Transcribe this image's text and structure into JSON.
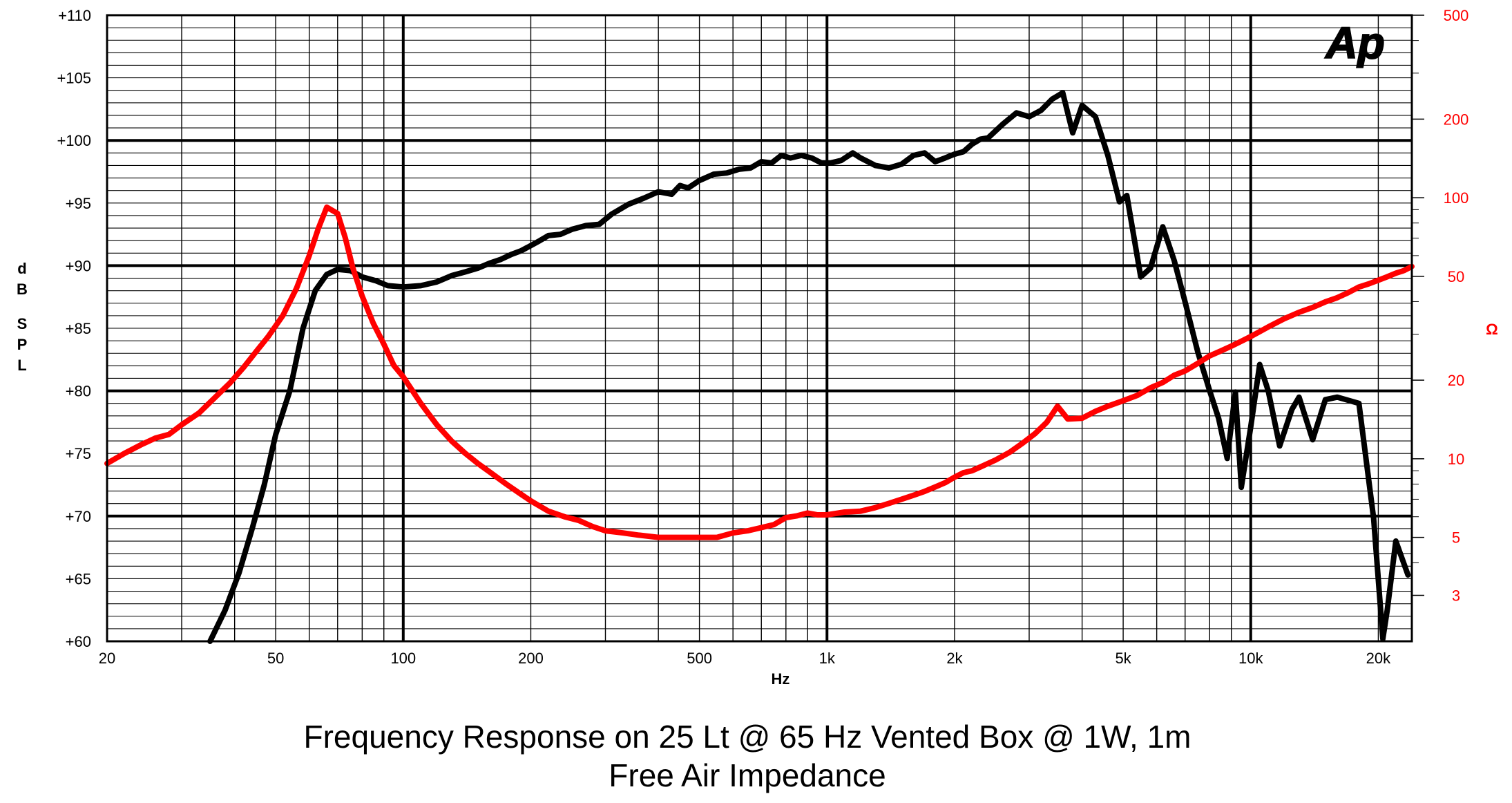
{
  "chart_data": {
    "type": "line",
    "title": "Frequency Response on 25 Lt @ 65 Hz Vented Box @ 1W, 1m",
    "subtitle": "Free Air Impedance",
    "xlabel": "Hz",
    "ylabel_left": "dB SPL",
    "ylabel_right": "Ω",
    "logo_text": "Ap",
    "x_scale": "log",
    "xlim": [
      20,
      24000
    ],
    "ylim_left": [
      60,
      110
    ],
    "ylim_right": [
      2,
      500
    ],
    "y_right_scale": "log",
    "grid": true,
    "x_tick_values": [
      20,
      50,
      100,
      200,
      500,
      1000,
      2000,
      5000,
      10000,
      20000
    ],
    "x_tick_labels": [
      "20",
      "50",
      "100",
      "200",
      "500",
      "1k",
      "2k",
      "5k",
      "10k",
      "20k"
    ],
    "y_left_tick_values": [
      60,
      65,
      70,
      75,
      80,
      85,
      90,
      95,
      100,
      105,
      110
    ],
    "y_left_tick_labels": [
      "+60",
      "+65",
      "+70",
      "+75",
      "+80",
      "+85",
      "+90",
      "+95",
      "+100",
      "+105",
      "+110"
    ],
    "y_right_tick_values": [
      3,
      5,
      10,
      20,
      50,
      100,
      200,
      500
    ],
    "y_right_tick_labels": [
      "3",
      "5",
      "10",
      "20",
      "50",
      "100",
      "200",
      "500"
    ],
    "series": [
      {
        "color": "#000000",
        "axis": "left",
        "x": [
          35,
          38,
          41,
          44,
          47,
          50,
          54,
          58,
          62,
          66,
          70,
          75,
          80,
          86,
          92,
          100,
          110,
          120,
          130,
          140,
          150,
          160,
          170,
          180,
          190,
          200,
          210,
          220,
          235,
          250,
          270,
          290,
          310,
          340,
          370,
          400,
          430,
          450,
          470,
          500,
          540,
          580,
          620,
          660,
          700,
          740,
          780,
          820,
          870,
          920,
          970,
          1020,
          1080,
          1150,
          1200,
          1250,
          1300,
          1400,
          1500,
          1600,
          1700,
          1800,
          1900,
          2000,
          2100,
          2200,
          2300,
          2400,
          2600,
          2800,
          3000,
          3200,
          3400,
          3600,
          3800,
          4000,
          4300,
          4600,
          4900,
          5100,
          5500,
          5800,
          6200,
          6600,
          7000,
          7500,
          8000,
          8400,
          8800,
          9200,
          9500,
          10000,
          10500,
          11000,
          11700,
          12500,
          13000,
          14000,
          15000,
          16000,
          18000,
          19500,
          20500,
          21000,
          22000,
          23500
        ],
        "values": [
          60,
          62.5,
          65.5,
          69,
          72.5,
          76.5,
          80,
          85,
          88,
          89.3,
          89.7,
          89.6,
          89.1,
          88.8,
          88.4,
          88.3,
          88.4,
          88.7,
          89.2,
          89.5,
          89.8,
          90.2,
          90.5,
          90.9,
          91.2,
          91.6,
          92.0,
          92.4,
          92.5,
          92.9,
          93.2,
          93.3,
          94.1,
          94.9,
          95.4,
          95.9,
          95.7,
          96.4,
          96.2,
          96.8,
          97.3,
          97.4,
          97.7,
          97.8,
          98.3,
          98.2,
          98.8,
          98.6,
          98.8,
          98.6,
          98.2,
          98.2,
          98.4,
          99.0,
          98.6,
          98.3,
          98.0,
          97.8,
          98.1,
          98.8,
          99.0,
          98.3,
          98.6,
          98.9,
          99.1,
          99.7,
          100.1,
          100.2,
          101.3,
          102.2,
          101.9,
          102.4,
          103.3,
          103.8,
          100.6,
          102.8,
          101.9,
          98.8,
          95.1,
          95.6,
          89.1,
          89.8,
          93.1,
          90.4,
          87.1,
          83.1,
          80,
          77.8,
          74.6,
          79.9,
          72.3,
          77.1,
          82.1,
          80,
          75.6,
          78.5,
          79.5,
          76.1,
          79.3,
          79.5,
          79.0,
          69.8,
          60.2,
          62.5,
          68.0,
          65.3
        ]
      },
      {
        "color": "#ff0000",
        "axis": "right",
        "x": [
          20,
          22,
          24,
          26,
          28,
          30,
          33,
          36,
          39,
          42,
          45,
          48,
          52,
          56,
          60,
          63,
          66,
          70,
          73,
          76,
          80,
          85,
          90,
          95,
          100,
          110,
          120,
          130,
          140,
          150,
          160,
          175,
          190,
          200,
          220,
          240,
          260,
          280,
          300,
          330,
          360,
          400,
          450,
          500,
          550,
          600,
          650,
          700,
          750,
          800,
          850,
          900,
          950,
          1000,
          1100,
          1200,
          1300,
          1400,
          1500,
          1600,
          1700,
          1800,
          1900,
          2000,
          2100,
          2200,
          2300,
          2400,
          2500,
          2700,
          2900,
          3100,
          3300,
          3500,
          3700,
          4000,
          4300,
          4600,
          5000,
          5400,
          5800,
          6200,
          6600,
          7000,
          7500,
          8000,
          8500,
          9000,
          9500,
          10000,
          11000,
          12000,
          13000,
          14000,
          15000,
          16000,
          17000,
          18000,
          19000,
          20000,
          21000,
          22000,
          23000,
          24000
        ],
        "values": [
          9.6,
          10.5,
          11.3,
          12.0,
          12.4,
          13.5,
          15.0,
          17.2,
          19.5,
          22.4,
          25.8,
          29.4,
          35.4,
          45.0,
          60.0,
          76.0,
          92.0,
          87.0,
          70.0,
          54.0,
          42.0,
          33.0,
          27.5,
          22.8,
          20.6,
          16.3,
          13.5,
          11.7,
          10.5,
          9.6,
          8.9,
          8.0,
          7.3,
          6.9,
          6.3,
          6.0,
          5.8,
          5.5,
          5.3,
          5.2,
          5.1,
          5.0,
          5.0,
          5.0,
          5.0,
          5.2,
          5.3,
          5.45,
          5.6,
          5.95,
          6.05,
          6.2,
          6.1,
          6.1,
          6.25,
          6.3,
          6.5,
          6.75,
          7.0,
          7.25,
          7.5,
          7.8,
          8.1,
          8.5,
          8.85,
          9.0,
          9.3,
          9.6,
          9.9,
          10.6,
          11.5,
          12.5,
          13.8,
          15.9,
          14.2,
          14.3,
          15.2,
          15.9,
          16.7,
          17.5,
          18.7,
          19.6,
          20.9,
          21.7,
          23.2,
          24.8,
          25.9,
          27.0,
          28.2,
          29.4,
          32.0,
          34.4,
          36.4,
          38.0,
          39.9,
          41.4,
          43.3,
          45.5,
          46.8,
          48.3,
          49.8,
          51.4,
          52.6,
          54.5
        ]
      }
    ]
  }
}
